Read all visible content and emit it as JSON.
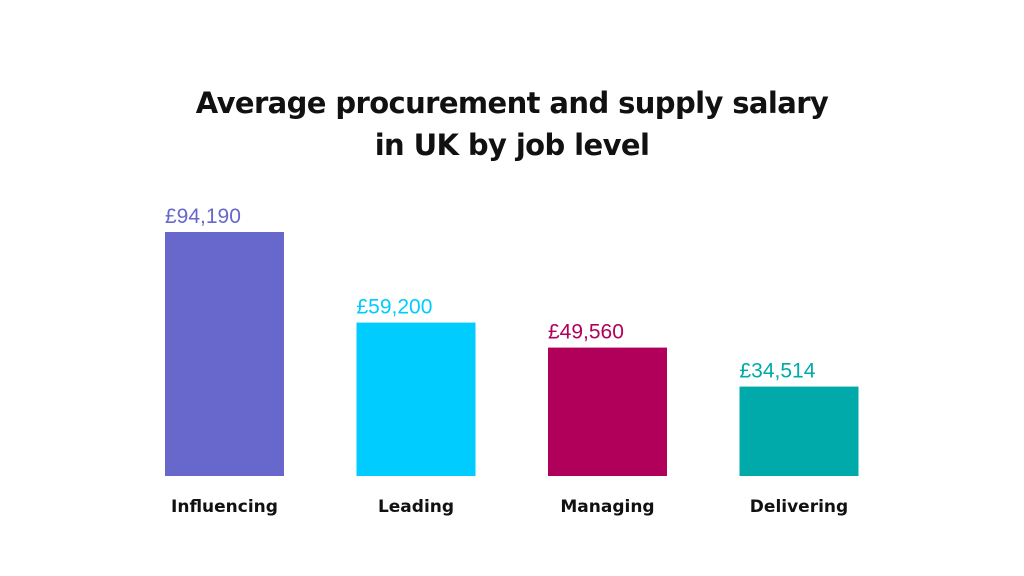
{
  "chart_data": {
    "type": "bar",
    "title_line1": "Average procurement and supply salary",
    "title_line2": "in UK by job level",
    "categories": [
      "Influencing",
      "Leading",
      "Managing",
      "Delivering"
    ],
    "values": [
      94190,
      59200,
      49560,
      34514
    ],
    "value_labels": [
      "£94,190",
      "£59,200",
      "£49,560",
      "£34,514"
    ],
    "colors": [
      "#6767cc",
      "#00ccff",
      "#b0005a",
      "#00aaaa"
    ],
    "xlabel": "",
    "ylabel": "",
    "ylim": [
      0,
      94190
    ],
    "grid": false,
    "legend": "none"
  }
}
